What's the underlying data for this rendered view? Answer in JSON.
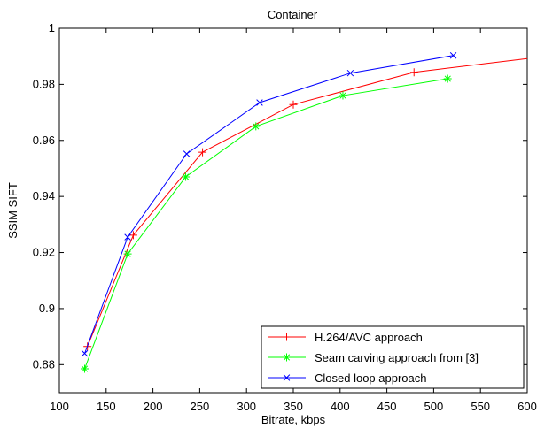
{
  "chart_data": {
    "type": "line",
    "title": "Container",
    "xlabel": "Bitrate, kbps",
    "ylabel": "SSIM SIFT",
    "xlim": [
      100,
      600
    ],
    "ylim": [
      0.87,
      1.0
    ],
    "xticks": [
      100,
      150,
      200,
      250,
      300,
      350,
      400,
      450,
      500,
      550,
      600
    ],
    "yticks": [
      0.88,
      0.9,
      0.92,
      0.94,
      0.96,
      0.98,
      1.0
    ],
    "xtick_labels": [
      "100",
      "150",
      "200",
      "250",
      "300",
      "350",
      "400",
      "450",
      "500",
      "550",
      "600"
    ],
    "ytick_labels": [
      "0.88",
      "0.9",
      "0.92",
      "0.94",
      "0.96",
      "0.98",
      "1"
    ],
    "grid": false,
    "legend_position": "bottom-right",
    "series": [
      {
        "name": "H.264/AVC approach",
        "color": "#ff0000",
        "marker": "plus",
        "x": [
          130,
          179,
          253,
          350,
          479,
          600
        ],
        "y": [
          0.8865,
          0.9262,
          0.9558,
          0.9728,
          0.9843,
          0.9892
        ],
        "marked": [
          true,
          true,
          true,
          true,
          true,
          false
        ]
      },
      {
        "name": "Seam carving approach from [3]",
        "color": "#00ff00",
        "marker": "star",
        "x": [
          127,
          173,
          235,
          310,
          403,
          515
        ],
        "y": [
          0.8785,
          0.9195,
          0.947,
          0.965,
          0.976,
          0.982
        ],
        "marked": [
          true,
          true,
          true,
          true,
          true,
          true
        ]
      },
      {
        "name": "Closed loop approach",
        "color": "#0000ff",
        "marker": "x",
        "x": [
          127,
          173,
          236,
          314,
          411,
          521
        ],
        "y": [
          0.884,
          0.9255,
          0.9552,
          0.9735,
          0.984,
          0.9903
        ],
        "marked": [
          true,
          true,
          true,
          true,
          true,
          true
        ]
      }
    ]
  }
}
